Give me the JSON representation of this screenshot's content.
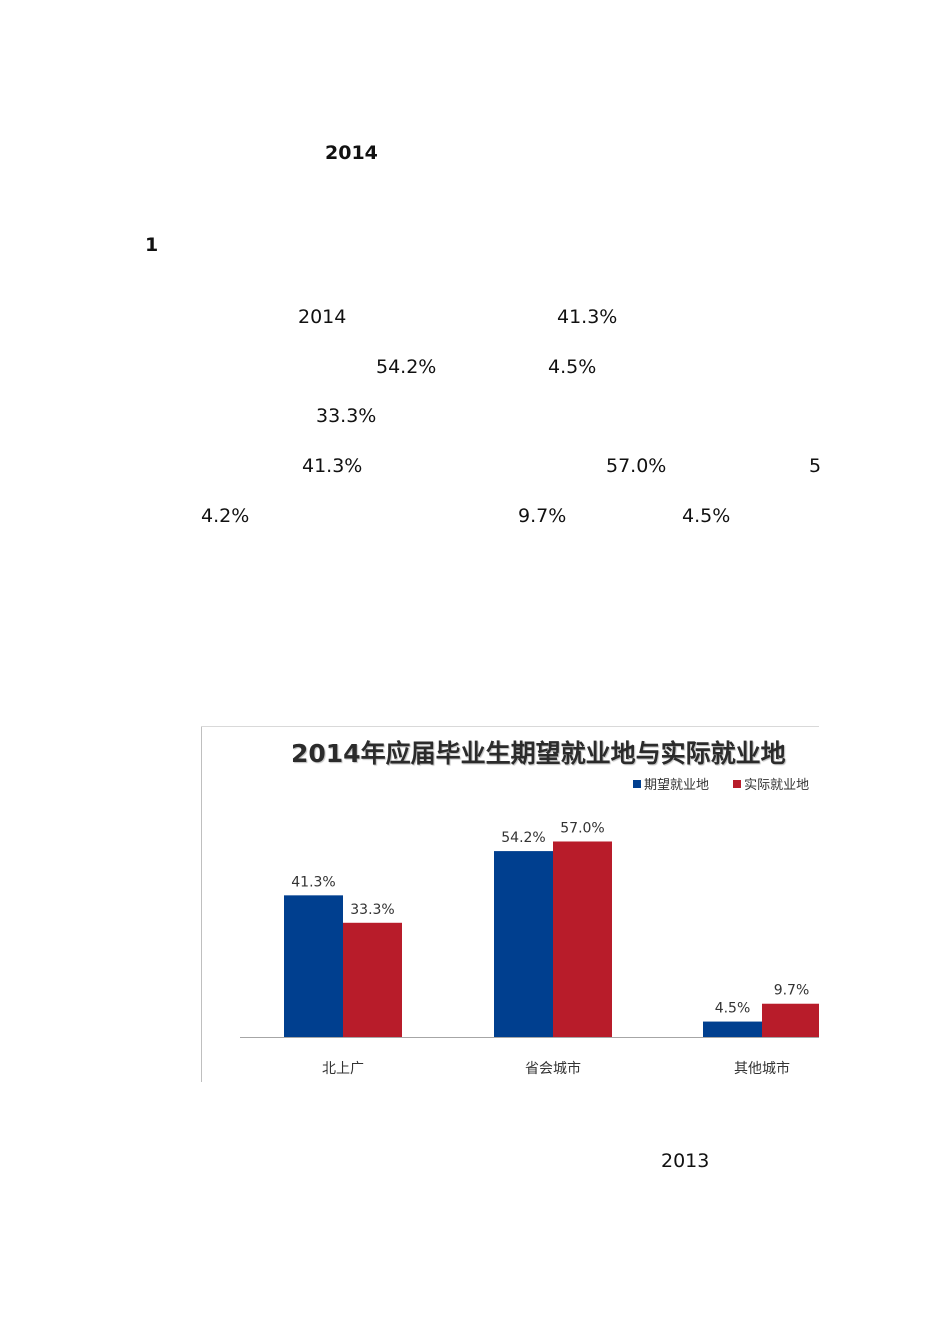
{
  "document": {
    "heading_year": "2014",
    "section_number": "1",
    "paragraph_fragments": {
      "line1_a": "2014",
      "line1_b": "41.3%",
      "line2_a": "54.2%",
      "line2_b": "4.5%",
      "line3_a": "33.3%",
      "line4_a": "41.3%",
      "line4_b": "57.0%",
      "line4_c": "5",
      "line5_a": "4.2%",
      "line5_b": "9.7%",
      "line5_c": "4.5%"
    },
    "footer_year": "2013"
  },
  "colors": {
    "expected": "#003f8f",
    "actual": "#b81c2a",
    "axis": "#a6a6a6"
  },
  "chart_data": {
    "type": "bar",
    "title": "2014年应届毕业生期望就业地与实际就业地",
    "categories": [
      "北上广",
      "省会城市",
      "其他城市"
    ],
    "series": [
      {
        "name": "期望就业地",
        "values": [
          41.3,
          54.2,
          4.5
        ],
        "labels": [
          "41.3%",
          "54.2%",
          "4.5%"
        ]
      },
      {
        "name": "实际就业地",
        "values": [
          33.3,
          57.0,
          9.7
        ],
        "labels": [
          "33.3%",
          "57.0%",
          "9.7%"
        ]
      }
    ],
    "legend_position": "top-right",
    "grid": false,
    "xlabel": "",
    "ylabel": "",
    "ylim": [
      0,
      60
    ]
  }
}
